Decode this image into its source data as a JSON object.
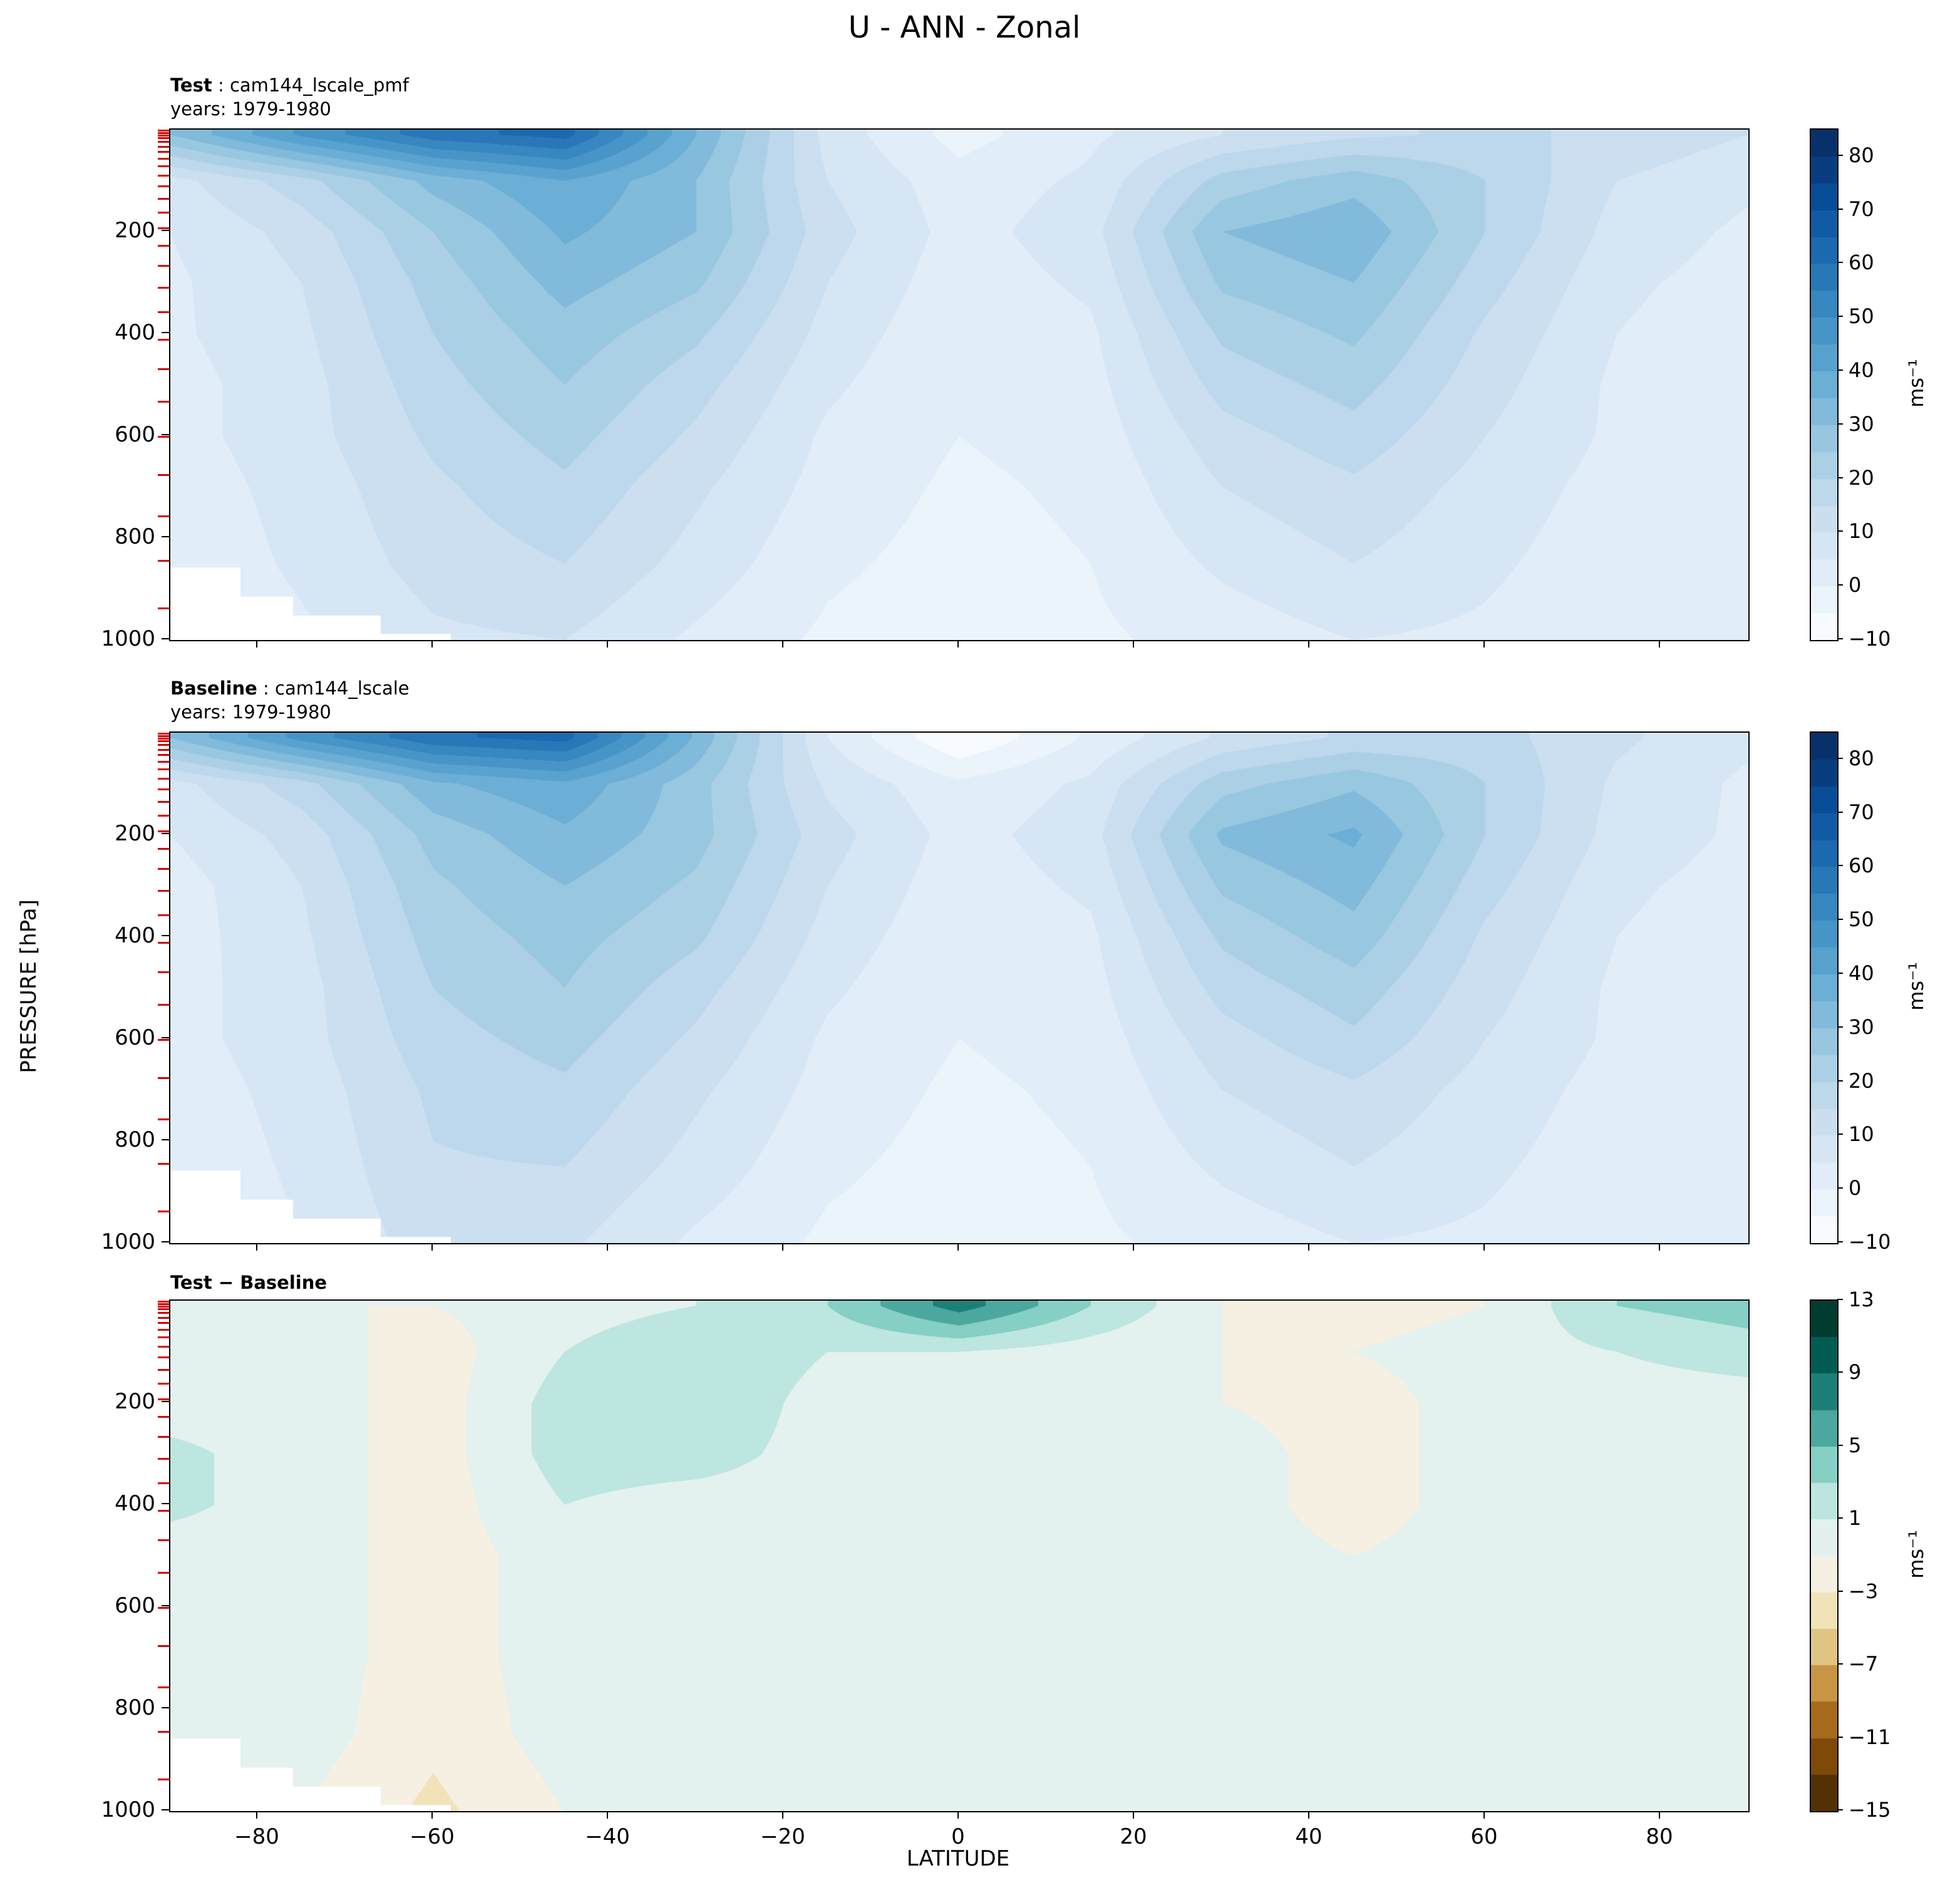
{
  "chart_data": {
    "type": "heatmap",
    "title": "U - ANN - Zonal",
    "xlabel": "LATITUDE",
    "ylabel": "PRESSURE [hPa]",
    "x_ticks": [
      -80,
      -60,
      -40,
      -20,
      0,
      20,
      40,
      60,
      80
    ],
    "y_ticks": [
      200,
      400,
      600,
      800,
      1000
    ],
    "x_range": [
      -90,
      90
    ],
    "y_range": [
      0,
      1000
    ],
    "lat": [
      -90,
      -75,
      -60,
      -45,
      -30,
      -15,
      0,
      15,
      30,
      45,
      60,
      75,
      90
    ],
    "pressure": [
      10,
      100,
      200,
      300,
      400,
      500,
      600,
      700,
      850,
      1000
    ],
    "colors": {
      "blues": [
        "#f7fbff",
        "#deebf7",
        "#c6dbef",
        "#9ecae1",
        "#6baed6",
        "#4292c6",
        "#2171b5",
        "#08519c",
        "#08306b"
      ],
      "brbg": [
        "#543005",
        "#8c510a",
        "#bf812d",
        "#dfc27d",
        "#f6e8c3",
        "#f5f5f5",
        "#c7eae5",
        "#80cdc1",
        "#35978f",
        "#01665e",
        "#003c30"
      ],
      "model_level_tick": "#d40000",
      "spine": "#000000"
    },
    "model_level_ticks": [
      4,
      8,
      13,
      19,
      26,
      35,
      46,
      59,
      74,
      92,
      113,
      137,
      164,
      195,
      230,
      269,
      312,
      360,
      413,
      471,
      535,
      604,
      679,
      760,
      847,
      940
    ],
    "surface_mask": [
      {
        "lat0": -90,
        "lat1": -82,
        "p": 858
      },
      {
        "lat0": -82,
        "lat1": -76,
        "p": 915
      },
      {
        "lat0": -76,
        "lat1": -66,
        "p": 952
      },
      {
        "lat0": -66,
        "lat1": -58,
        "p": 988
      }
    ],
    "panels": [
      {
        "id": "test",
        "label_bold": "Test",
        "label_rest": " : cam144_lscale_pmf",
        "years": "years: 1979-1980",
        "units": "ms⁻¹",
        "colormap": "blues",
        "vmin": -10,
        "vmax": 85,
        "step": 5,
        "colorbar_ticks": [
          80,
          70,
          60,
          50,
          40,
          30,
          20,
          10,
          0,
          -10
        ],
        "show_x_labels": false,
        "values": [
          [
            30,
            46,
            58,
            62,
            35,
            8,
            -2,
            4,
            10,
            14,
            16,
            14,
            10
          ],
          [
            8,
            18,
            32,
            40,
            30,
            10,
            2,
            6,
            22,
            28,
            20,
            10,
            6
          ],
          [
            5,
            12,
            25,
            36,
            30,
            12,
            3,
            8,
            30,
            34,
            20,
            8,
            4
          ],
          [
            4,
            10,
            22,
            32,
            26,
            10,
            2,
            6,
            26,
            30,
            17,
            6,
            3
          ],
          [
            4,
            9,
            20,
            28,
            21,
            8,
            1,
            4,
            21,
            26,
            14,
            5,
            2
          ],
          [
            3,
            8,
            18,
            25,
            17,
            6,
            0,
            3,
            17,
            22,
            12,
            4,
            2
          ],
          [
            3,
            8,
            16,
            22,
            14,
            4,
            0,
            2,
            13,
            18,
            10,
            4,
            1
          ],
          [
            2,
            7,
            14,
            19,
            11,
            3,
            -1,
            1,
            10,
            14,
            8,
            3,
            1
          ],
          [
            1,
            6,
            12,
            15,
            8,
            1,
            -2,
            0,
            6,
            10,
            6,
            2,
            1
          ],
          [
            0,
            4,
            9,
            10,
            4,
            -1,
            -3,
            -1,
            2,
            5,
            4,
            1,
            0
          ]
        ]
      },
      {
        "id": "baseline",
        "label_bold": "Baseline",
        "label_rest": " : cam144_lscale",
        "years": "years: 1979-1980",
        "units": "ms⁻¹",
        "colormap": "blues",
        "vmin": -10,
        "vmax": 85,
        "step": 5,
        "colorbar_ticks": [
          80,
          70,
          60,
          50,
          40,
          30,
          20,
          10,
          0,
          -10
        ],
        "show_x_labels": false,
        "values": [
          [
            30,
            47,
            59,
            62,
            34,
            5,
            -10,
            1,
            11,
            16,
            17,
            11,
            6
          ],
          [
            8,
            18,
            34,
            39,
            27,
            9,
            1,
            6,
            23,
            29,
            20,
            9,
            4
          ],
          [
            5,
            12,
            27,
            34,
            27,
            12,
            3,
            8,
            31,
            36,
            20,
            8,
            4
          ],
          [
            2.5,
            10,
            24,
            30,
            24,
            10,
            2,
            6,
            26,
            32,
            17,
            6,
            3
          ],
          [
            2.5,
            9,
            22,
            27,
            21,
            8,
            1,
            4,
            21,
            28,
            14,
            5,
            2
          ],
          [
            3,
            8,
            20,
            25,
            17,
            6,
            0,
            3,
            17,
            23,
            12,
            4,
            2
          ],
          [
            3,
            8,
            18,
            22,
            14,
            4,
            0,
            2,
            13,
            19,
            10,
            4,
            1
          ],
          [
            2,
            7,
            16,
            19,
            11,
            3,
            -1,
            1,
            10,
            14,
            8,
            3,
            1
          ],
          [
            1,
            6,
            14.5,
            15,
            8,
            1,
            -2,
            0,
            6,
            10,
            6,
            2,
            1
          ],
          [
            0,
            5,
            12.5,
            11,
            4,
            -1,
            -3,
            -1,
            2,
            5,
            4,
            1,
            0
          ]
        ]
      },
      {
        "id": "diff",
        "label_bold": "Test − Baseline",
        "label_rest": "",
        "years": "",
        "units": "ms⁻¹",
        "colormap": "brbg",
        "vmin": -15,
        "vmax": 13,
        "step": 2,
        "colorbar_ticks": [
          13,
          9,
          5,
          1,
          -3,
          -7,
          -11,
          -15
        ],
        "show_x_labels": true,
        "values": [
          [
            0,
            -1,
            -1,
            0,
            1,
            3,
            8,
            3,
            -1,
            -2,
            -1,
            3,
            4
          ],
          [
            0,
            0,
            -2,
            1,
            3,
            1,
            1,
            0,
            -1,
            -1,
            0,
            1,
            2
          ],
          [
            0,
            0,
            -2,
            2,
            3,
            0,
            0,
            0,
            -1,
            -2,
            0,
            0,
            0
          ],
          [
            1.5,
            0,
            -2,
            2,
            2,
            0,
            0,
            0,
            0,
            -2,
            0,
            0,
            0
          ],
          [
            1.5,
            0,
            -2,
            1,
            0,
            0,
            0,
            0,
            0,
            -2,
            0,
            0,
            0
          ],
          [
            0,
            0,
            -2,
            0,
            0,
            0,
            0,
            0,
            0,
            -1,
            0,
            0,
            0
          ],
          [
            0,
            0,
            -2,
            0,
            0,
            0,
            0,
            0,
            0,
            -1,
            0,
            0,
            0
          ],
          [
            0,
            0,
            -2,
            0,
            0,
            0,
            0,
            0,
            0,
            0,
            0,
            0,
            0
          ],
          [
            0,
            0,
            -2.5,
            0,
            0,
            0,
            0,
            0,
            0,
            0,
            0,
            0,
            0
          ],
          [
            0,
            -1,
            -3.5,
            -1,
            0,
            0,
            0,
            0,
            0,
            0,
            0,
            0,
            0
          ]
        ]
      }
    ]
  }
}
